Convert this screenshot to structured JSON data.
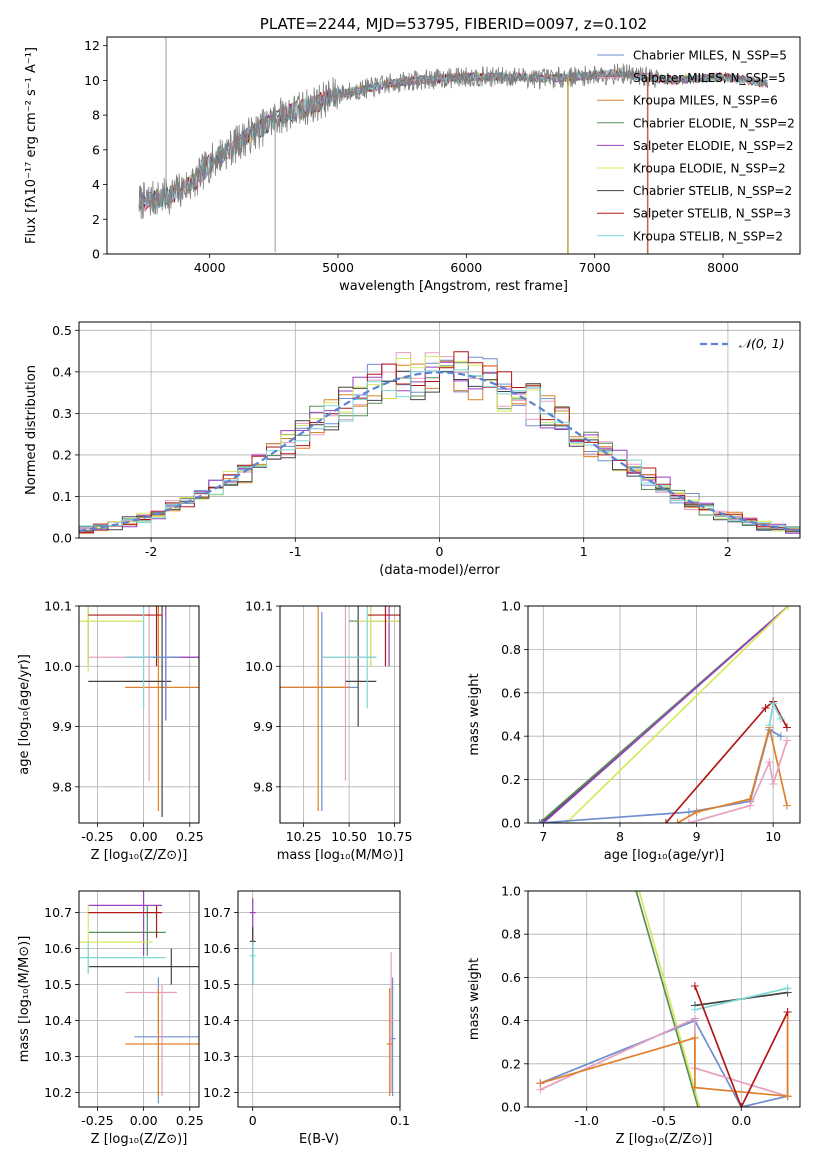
{
  "chart_data": [
    {
      "id": "spectrum",
      "type": "line",
      "title": "PLATE=2244, MJD=53795, FIBERID=0097, z=0.102",
      "xlabel": "wavelength [Angstrom, rest frame]",
      "ylabel": "Flux [fλ10⁻¹⁷ erg cm⁻² s⁻¹ A⁻¹]",
      "xlim": [
        3200,
        8600
      ],
      "ylim": [
        0,
        12.5
      ],
      "xticks": [
        4000,
        5000,
        6000,
        7000,
        8000
      ],
      "yticks": [
        0,
        2,
        4,
        6,
        8,
        10,
        12
      ],
      "legend_position": "upper right",
      "continuum_x": [
        3450,
        3600,
        3700,
        3800,
        3900,
        4000,
        4100,
        4200,
        4300,
        4400,
        4500,
        4600,
        4700,
        4800,
        4900,
        5000,
        5200,
        5400,
        5600,
        5800,
        6000,
        6200,
        6400,
        6600,
        6800,
        7000,
        7200,
        7400,
        7600,
        7800,
        8000,
        8200,
        8350
      ],
      "continuum_y": [
        3.0,
        3.2,
        3.4,
        3.8,
        4.3,
        5.2,
        5.8,
        6.3,
        6.8,
        7.2,
        7.8,
        8.1,
        8.3,
        8.6,
        8.9,
        9.2,
        9.5,
        9.8,
        10.0,
        10.1,
        10.2,
        10.2,
        10.2,
        10.1,
        10.2,
        10.3,
        10.4,
        10.2,
        10.0,
        10.1,
        10.2,
        10.0,
        9.8
      ],
      "series": [
        {
          "name": "Chabrier MILES, N_SSP=5",
          "color": "#6f8fcf"
        },
        {
          "name": "Salpeter MILES, N_SSP=5",
          "color": "#e8a0bf"
        },
        {
          "name": "Kroupa MILES, N_SSP=6",
          "color": "#e0802a"
        },
        {
          "name": "Chabrier ELODIE, N_SSP=2",
          "color": "#5a8f5a"
        },
        {
          "name": "Salpeter ELODIE, N_SSP=2",
          "color": "#9a3fbf"
        },
        {
          "name": "Kroupa ELODIE, N_SSP=2",
          "color": "#d8e860"
        },
        {
          "name": "Chabrier STELIB, N_SSP=2",
          "color": "#444444"
        },
        {
          "name": "Salpeter STELIB, N_SSP=3",
          "color": "#b01818"
        },
        {
          "name": "Kroupa STELIB, N_SSP=2",
          "color": "#7fd8d8"
        }
      ]
    },
    {
      "id": "residuals",
      "type": "line",
      "xlabel": "(data-model)/error",
      "ylabel": "Normed distribution",
      "xlim": [
        -2.5,
        2.5
      ],
      "ylim": [
        0,
        0.52
      ],
      "xticks": [
        -2,
        -1,
        0,
        1,
        2
      ],
      "yticks": [
        0.0,
        0.1,
        0.2,
        0.3,
        0.4,
        0.5
      ],
      "legend": "𝒩(0, 1)",
      "legend_position": "upper right"
    },
    {
      "id": "age-vs-Z",
      "type": "scatter",
      "xlabel": "Z [log₁₀(Z/Z⊙)]",
      "ylabel": "age  [log₁₀(age/yr)]",
      "xlim": [
        -0.35,
        0.3
      ],
      "ylim": [
        9.74,
        10.1
      ],
      "xticks": [
        -0.25,
        0.0,
        0.25
      ],
      "yticks": [
        9.8,
        9.9,
        10.0,
        10.1
      ]
    },
    {
      "id": "age-vs-mass",
      "type": "scatter",
      "xlabel": "mass [log₁₀(M/M⊙)]",
      "xlim": [
        10.12,
        10.78
      ],
      "ylim": [
        9.74,
        10.1
      ],
      "xticks": [
        10.25,
        10.5,
        10.75
      ],
      "yticks": [
        9.8,
        9.9,
        10.0,
        10.1
      ]
    },
    {
      "id": "weight-vs-age",
      "type": "line",
      "xlabel": "age  [log₁₀(age/yr)]",
      "ylabel": "mass weight",
      "xlim": [
        6.8,
        10.35
      ],
      "ylim": [
        0,
        1.0
      ],
      "xticks": [
        7,
        8,
        9,
        10
      ],
      "yticks": [
        0.0,
        0.2,
        0.4,
        0.6,
        0.8,
        1.0
      ]
    },
    {
      "id": "mass-vs-Z",
      "type": "scatter",
      "xlabel": "Z [log₁₀(Z/Z⊙)]",
      "ylabel": "mass [log₁₀(M/M⊙)]",
      "xlim": [
        -0.35,
        0.3
      ],
      "ylim": [
        10.16,
        10.76
      ],
      "xticks": [
        -0.25,
        0.0,
        0.25
      ],
      "yticks": [
        10.2,
        10.3,
        10.4,
        10.5,
        10.6,
        10.7
      ]
    },
    {
      "id": "mass-vs-ebv",
      "type": "scatter",
      "xlabel": "E(B-V)",
      "xlim": [
        -0.01,
        0.1
      ],
      "ylim": [
        10.16,
        10.76
      ],
      "xticks": [
        0.0,
        0.1
      ],
      "yticks": [
        10.2,
        10.3,
        10.4,
        10.5,
        10.6,
        10.7
      ]
    },
    {
      "id": "weight-vs-Z",
      "type": "line",
      "xlabel": "Z [log₁₀(Z/Z⊙)]",
      "ylabel": "mass weight",
      "xlim": [
        -1.38,
        0.38
      ],
      "ylim": [
        0,
        1.0
      ],
      "xticks": [
        -1.0,
        -0.5,
        0.0
      ],
      "yticks": [
        0.0,
        0.2,
        0.4,
        0.6,
        0.8,
        1.0
      ]
    }
  ]
}
